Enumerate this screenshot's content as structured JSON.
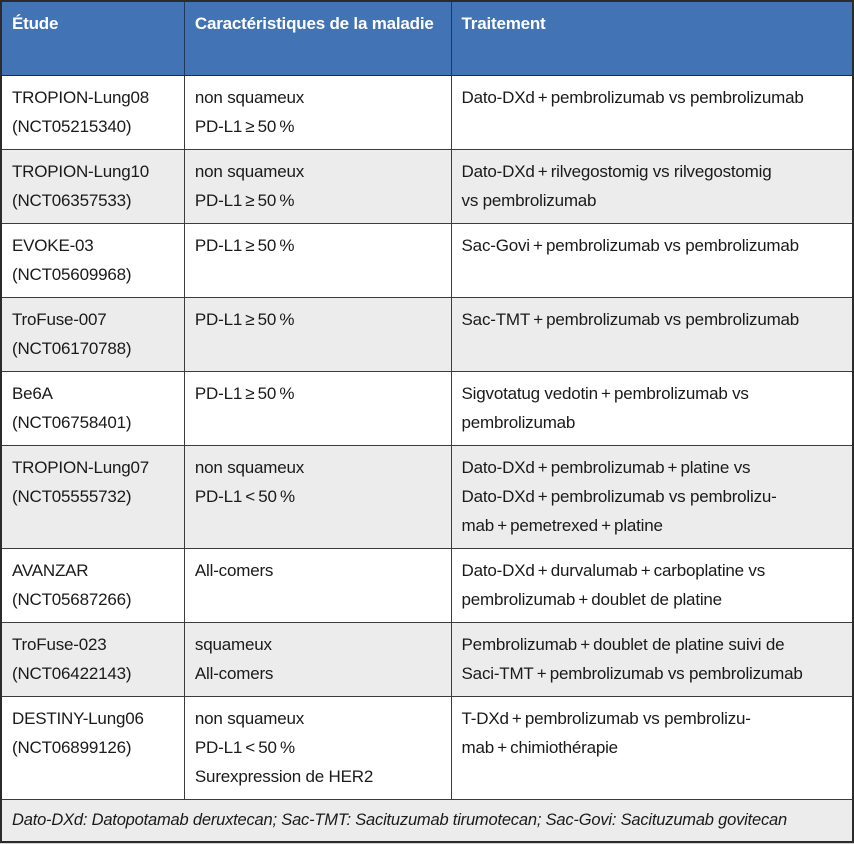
{
  "colors": {
    "header_bg": "#4273B4",
    "header_text": "#FFFFFF",
    "header_divider": "#23375F",
    "row_alt_bg": "#ECECEC",
    "border": "#3C3C3C",
    "text": "#1A1A1A"
  },
  "table": {
    "headers": [
      "Étude",
      "Caractéristiques de la maladie",
      "Traitement"
    ],
    "rows": [
      {
        "study": "TROPION-Lung08\n(NCT05215340)",
        "characteristics": "non squameux\nPD-L1 ≥ 50 %",
        "treatment": "Dato-DXd + pembrolizumab vs pembrolizumab"
      },
      {
        "study": "TROPION-Lung10\n(NCT06357533)",
        "characteristics": "non squameux\nPD-L1 ≥ 50 %",
        "treatment": "Dato-DXd + rilvegostomig vs rilvegostomig\nvs pembrolizumab"
      },
      {
        "study": "EVOKE-03\n(NCT05609968)",
        "characteristics": "PD-L1 ≥ 50 %",
        "treatment": "Sac-Govi + pembrolizumab vs pembrolizumab"
      },
      {
        "study": "TroFuse-007\n(NCT06170788)",
        "characteristics": "PD-L1 ≥ 50 %",
        "treatment": "Sac-TMT + pembrolizumab vs pembrolizumab"
      },
      {
        "study": "Be6A\n(NCT06758401)",
        "characteristics": "PD-L1 ≥ 50 %",
        "treatment": "Sigvotatug vedotin + pembrolizumab vs\npembrolizumab"
      },
      {
        "study": "TROPION-Lung07\n(NCT05555732)",
        "characteristics": "non squameux\nPD-L1 < 50 %",
        "treatment": "Dato-DXd + pembrolizumab + platine vs\nDato-DXd + pembrolizumab vs pembrolizu-\nmab + pemetrexed + platine"
      },
      {
        "study": "AVANZAR\n(NCT05687266)",
        "characteristics": "All-comers",
        "treatment": "Dato-DXd + durvalumab + carboplatine vs\npembrolizumab + doublet de platine"
      },
      {
        "study": "TroFuse-023\n(NCT06422143)",
        "characteristics": "squameux\nAll-comers",
        "treatment": "Pembrolizumab + doublet de platine suivi de\nSaci-TMT + pembrolizumab vs pembrolizumab"
      },
      {
        "study": "DESTINY-Lung06\n(NCT06899126)",
        "characteristics": "non squameux\nPD-L1 < 50 %\nSurexpression de HER2",
        "treatment": "T-DXd + pembrolizumab vs pembrolizu-\nmab + chimiothérapie"
      }
    ],
    "footnote": "Dato-DXd: Datopotamab deruxtecan; Sac-TMT: Sacituzumab tirumotecan; Sac-Govi: Sacituzumab govitecan"
  }
}
